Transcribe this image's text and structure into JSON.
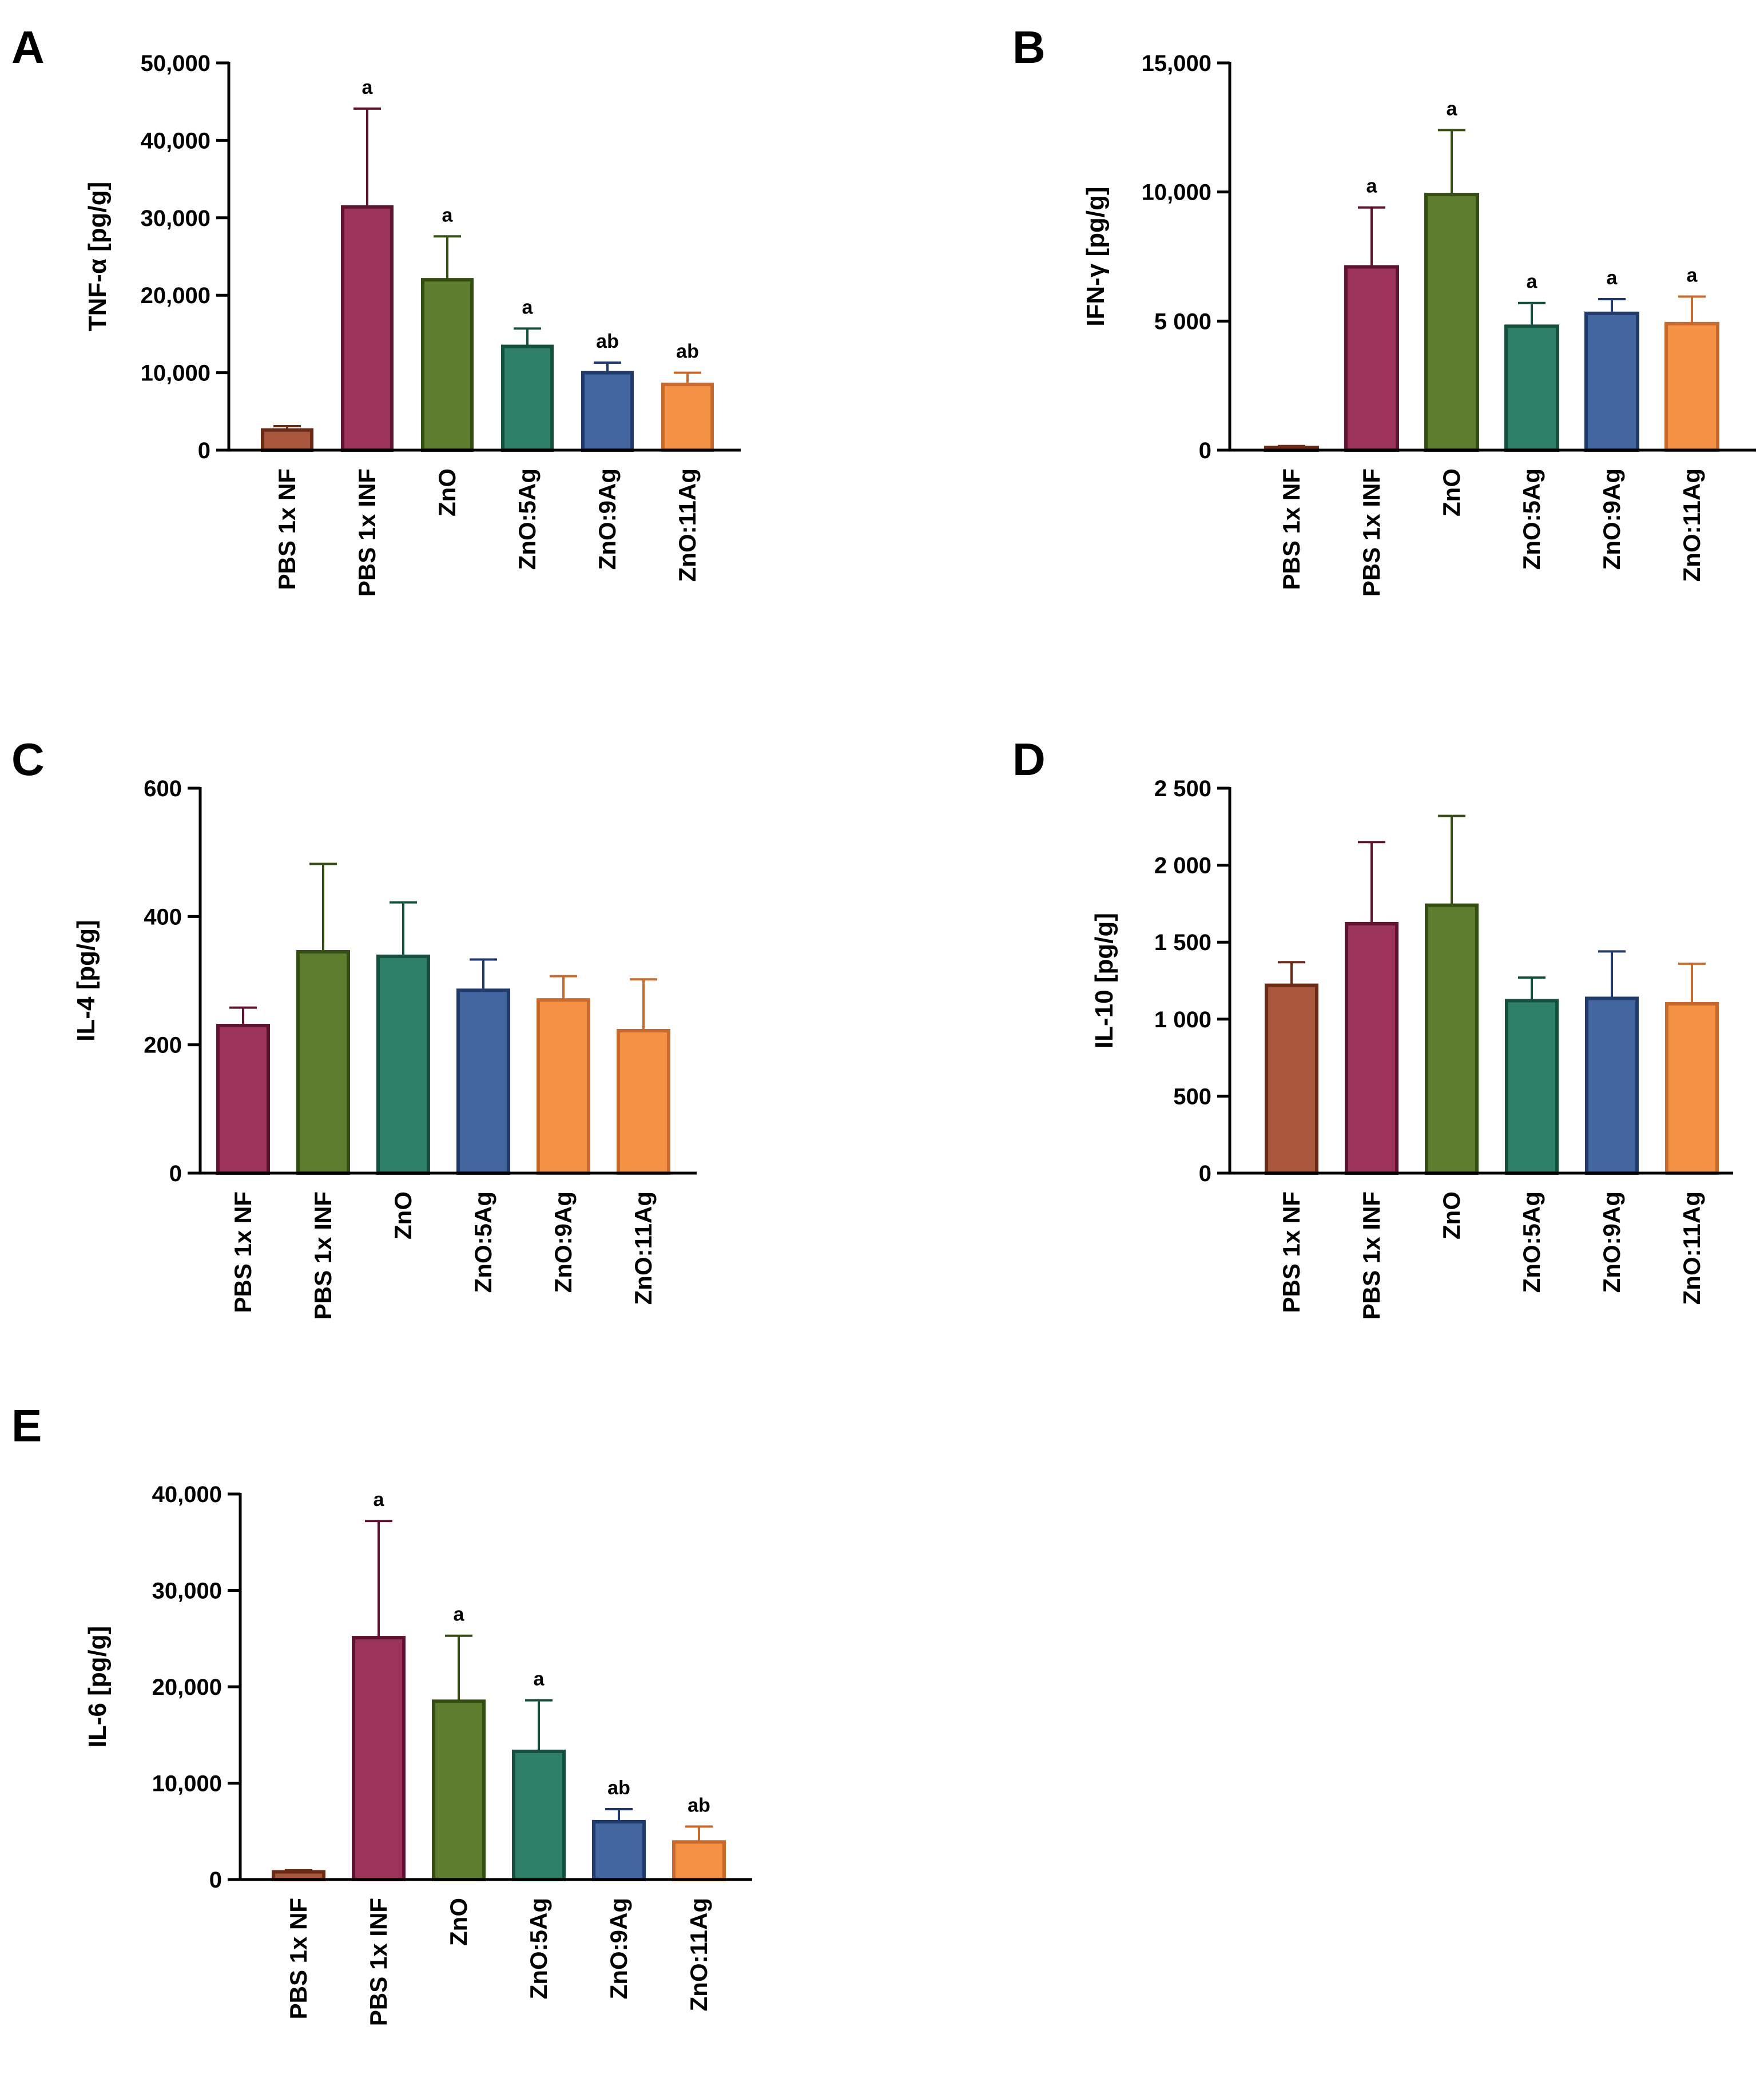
{
  "chart_data": [
    {
      "panel": "A",
      "type": "bar",
      "ylabel": "TNF-α [pg/g]",
      "ylim": [
        0,
        50000
      ],
      "yticks": [
        0,
        10000,
        20000,
        30000,
        40000,
        50000
      ],
      "ytick_labels": [
        "0",
        "10,000",
        "20,000",
        "30,000",
        "40,000",
        "50,000"
      ],
      "categories": [
        "PBS 1x NF",
        "PBS 1x INF",
        "ZnO",
        "ZnO:5Ag",
        "ZnO:9Ag",
        "ZnO:11Ag"
      ],
      "values": [
        2600,
        31400,
        22000,
        13400,
        10000,
        8500
      ],
      "errors": [
        500,
        12700,
        5600,
        2300,
        1300,
        1500
      ],
      "significance": [
        "",
        "a",
        "a",
        "a",
        "ab",
        "ab"
      ],
      "colors": [
        "#a9573c",
        "#9b3458",
        "#5e7d2f",
        "#2e8168",
        "#4466a0",
        "#f59145"
      ],
      "edge_colors": [
        "#6b2a16",
        "#5e1430",
        "#344d12",
        "#15503e",
        "#1f3a6b",
        "#c86a2c"
      ]
    },
    {
      "panel": "B",
      "type": "bar",
      "ylabel": "IFN-γ [pg/g]",
      "ylim": [
        0,
        15000
      ],
      "yticks": [
        0,
        5000,
        10000,
        15000
      ],
      "ytick_labels": [
        "0",
        "5 000",
        "10,000",
        "15,000"
      ],
      "categories": [
        "PBS 1x NF",
        "PBS 1x INF",
        "ZnO",
        "ZnO:5Ag",
        "ZnO:9Ag",
        "ZnO:11Ag"
      ],
      "values": [
        100,
        7100,
        9900,
        4800,
        5300,
        4900
      ],
      "errors": [
        60,
        2300,
        2500,
        900,
        550,
        1050
      ],
      "significance": [
        "",
        "a",
        "a",
        "a",
        "a",
        "a"
      ],
      "colors": [
        "#a9573c",
        "#9b3458",
        "#5e7d2f",
        "#2e8168",
        "#4466a0",
        "#f59145"
      ],
      "edge_colors": [
        "#6b2a16",
        "#5e1430",
        "#344d12",
        "#15503e",
        "#1f3a6b",
        "#c86a2c"
      ]
    },
    {
      "panel": "C",
      "type": "bar",
      "ylabel": "IL-4 [pg/g]",
      "ylim": [
        0,
        600
      ],
      "yticks": [
        0,
        200,
        400,
        600
      ],
      "ytick_labels": [
        "0",
        "200",
        "400",
        "600"
      ],
      "categories": [
        "PBS 1x NF",
        "PBS 1x INF",
        "ZnO",
        "ZnO:5Ag",
        "ZnO:9Ag",
        "ZnO:11Ag"
      ],
      "values": [
        230,
        345,
        338,
        285,
        270,
        222
      ],
      "errors": [
        28,
        137,
        84,
        48,
        37,
        80
      ],
      "significance": [
        "",
        "",
        "",
        "",
        "",
        ""
      ],
      "colors": [
        "#9b3458",
        "#5e7d2f",
        "#2e8168",
        "#4466a0",
        "#f59145",
        "#f59145"
      ],
      "edge_colors": [
        "#5e1430",
        "#344d12",
        "#15503e",
        "#1f3a6b",
        "#c86a2c",
        "#c86a2c"
      ]
    },
    {
      "panel": "D",
      "type": "bar",
      "ylabel": "IL-10 [pg/g]",
      "ylim": [
        0,
        2500
      ],
      "yticks": [
        0,
        500,
        1000,
        1500,
        2000,
        2500
      ],
      "ytick_labels": [
        "0",
        "500",
        "1 000",
        "1 500",
        "2 000",
        "2 500"
      ],
      "categories": [
        "PBS 1x NF",
        "PBS 1x INF",
        "ZnO",
        "ZnO:5Ag",
        "ZnO:9Ag",
        "ZnO:11Ag"
      ],
      "values": [
        1220,
        1620,
        1740,
        1120,
        1135,
        1100
      ],
      "errors": [
        150,
        530,
        580,
        150,
        305,
        260
      ],
      "significance": [
        "",
        "",
        "",
        "",
        "",
        ""
      ],
      "colors": [
        "#a9573c",
        "#9b3458",
        "#5e7d2f",
        "#2e8168",
        "#4466a0",
        "#f59145"
      ],
      "edge_colors": [
        "#6b2a16",
        "#5e1430",
        "#344d12",
        "#15503e",
        "#1f3a6b",
        "#c86a2c"
      ]
    },
    {
      "panel": "E",
      "type": "bar",
      "ylabel": "IL-6 [pg/g]",
      "ylim": [
        0,
        40000
      ],
      "yticks": [
        0,
        10000,
        20000,
        30000,
        40000
      ],
      "ytick_labels": [
        "0",
        "10,000",
        "20,000",
        "30,000",
        "40,000"
      ],
      "categories": [
        "PBS 1x NF",
        "PBS 1x INF",
        "ZnO",
        "ZnO:5Ag",
        "ZnO:9Ag",
        "ZnO:11Ag"
      ],
      "values": [
        800,
        25100,
        18500,
        13300,
        6000,
        3900
      ],
      "errors": [
        150,
        12100,
        6800,
        5300,
        1300,
        1600
      ],
      "significance": [
        "",
        "a",
        "a",
        "a",
        "ab",
        "ab"
      ],
      "colors": [
        "#a9573c",
        "#9b3458",
        "#5e7d2f",
        "#2e8168",
        "#4466a0",
        "#f59145"
      ],
      "edge_colors": [
        "#6b2a16",
        "#5e1430",
        "#344d12",
        "#15503e",
        "#1f3a6b",
        "#c86a2c"
      ]
    }
  ]
}
